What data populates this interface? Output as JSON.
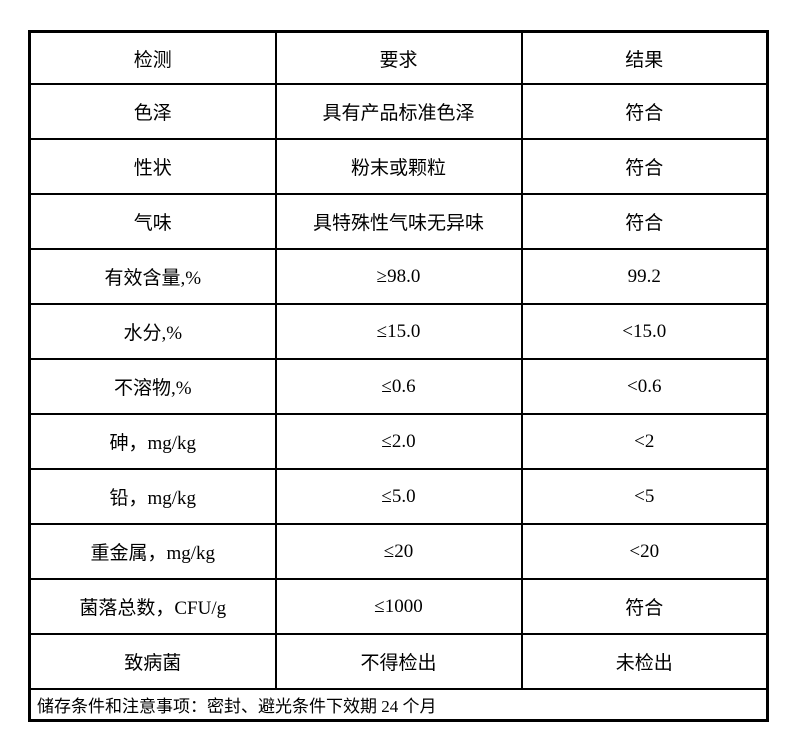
{
  "page": {
    "background": "#ffffff",
    "text_color": "#000000",
    "border_color": "#000000"
  },
  "table": {
    "headers": [
      "检测",
      "要求",
      "结果"
    ],
    "rows": [
      [
        "色泽",
        "具有产品标准色泽",
        "符合"
      ],
      [
        "性状",
        "粉末或颗粒",
        "符合"
      ],
      [
        "气味",
        "具特殊性气味无异味",
        "符合"
      ],
      [
        "有效含量,%",
        "≥98.0",
        "99.2"
      ],
      [
        "水分,%",
        "≤15.0",
        "<15.0"
      ],
      [
        "不溶物,%",
        "≤0.6",
        "<0.6"
      ],
      [
        "砷，mg/kg",
        "≤2.0",
        "<2"
      ],
      [
        "铅，mg/kg",
        "≤5.0",
        "<5"
      ],
      [
        "重金属，mg/kg",
        "≤20",
        "<20"
      ],
      [
        "菌落总数，CFU/g",
        "≤1000",
        "符合"
      ],
      [
        "致病菌",
        "不得检出",
        "未检出"
      ]
    ],
    "footer": "储存条件和注意事项：密封、避光条件下效期 24 个月"
  }
}
